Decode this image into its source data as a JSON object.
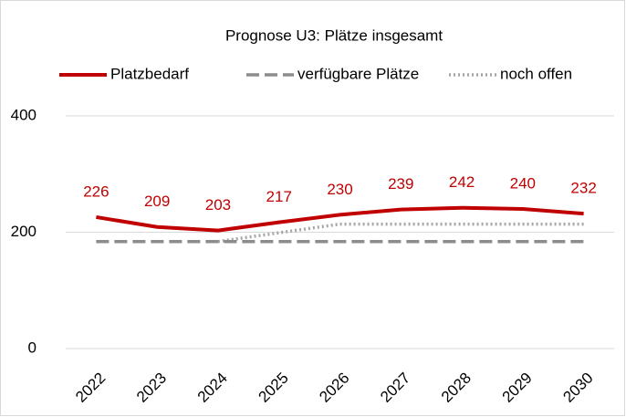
{
  "chart_data": {
    "type": "line",
    "title": "Prognose U3: Plätze insgesamt",
    "categories": [
      "2022",
      "2023",
      "2024",
      "2025",
      "2026",
      "2027",
      "2028",
      "2029",
      "2030"
    ],
    "series": [
      {
        "name": "Platzbedarf",
        "color": "#c00000",
        "style": "solid",
        "data_labels": true,
        "values": [
          226,
          209,
          203,
          217,
          230,
          239,
          242,
          240,
          232
        ]
      },
      {
        "name": "verfügbare Plätze",
        "color": "#8c8c8c",
        "style": "dashed",
        "values": [
          184,
          184,
          184,
          184,
          184,
          184,
          184,
          184,
          184
        ]
      },
      {
        "name": "noch offen",
        "color": "#a6a6a6",
        "style": "dotted",
        "values": [
          null,
          null,
          184,
          199,
          214,
          214,
          214,
          214,
          214
        ]
      }
    ],
    "ylim": [
      0,
      400
    ],
    "yticks": [
      0,
      200,
      400
    ],
    "grid": true,
    "legend": "top"
  }
}
